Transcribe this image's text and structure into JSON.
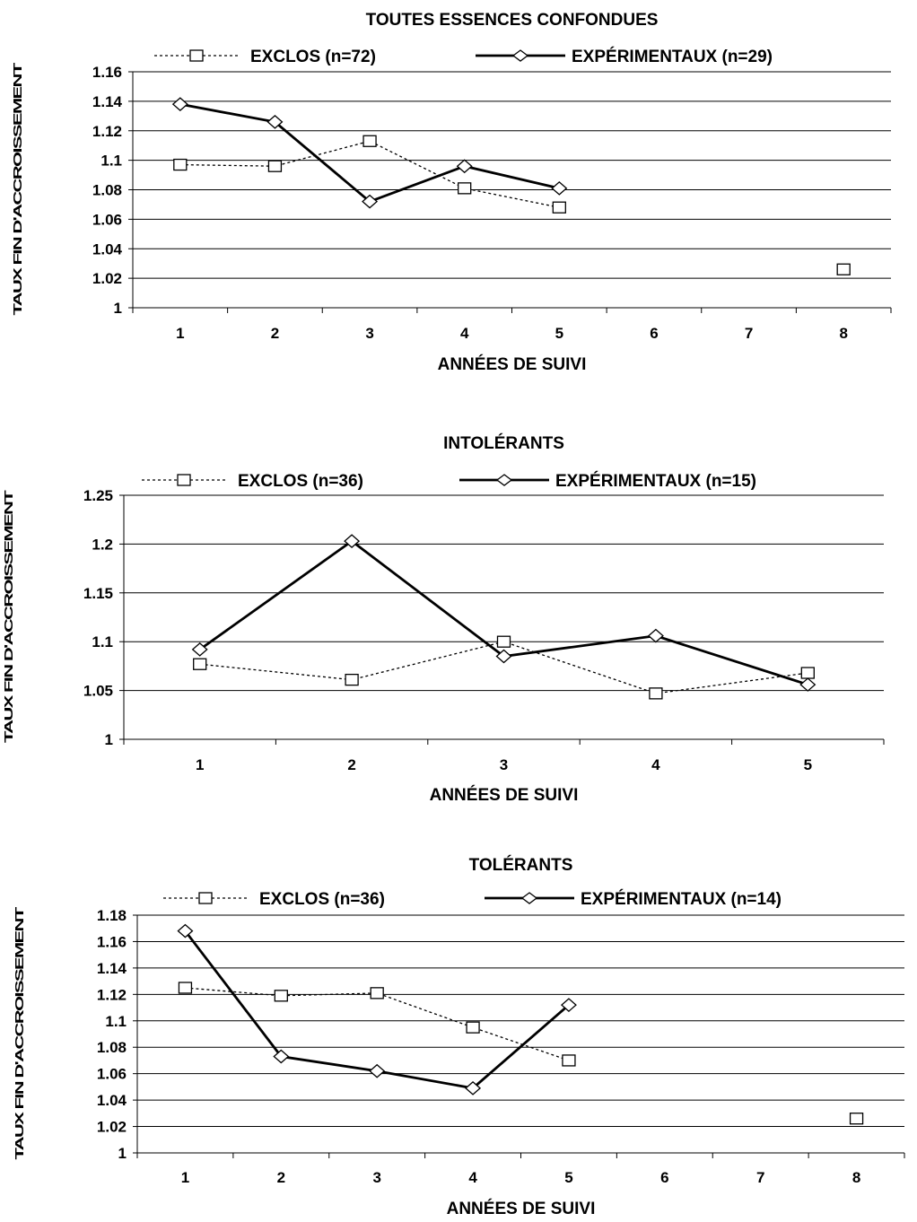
{
  "chart_data": [
    {
      "type": "line",
      "title": "TOUTES ESSENCES CONFONDUES",
      "xlabel": "ANNÉES DE SUIVI",
      "ylabel": "TAUX FIN D'ACCROISSEMENT",
      "categories": [
        "1",
        "2",
        "3",
        "4",
        "5",
        "6",
        "7",
        "8"
      ],
      "ylim": [
        1,
        1.16
      ],
      "yticks": [
        "1",
        "1.02",
        "1.04",
        "1.06",
        "1.08",
        "1.1",
        "1.12",
        "1.14",
        "1.16"
      ],
      "grid": true,
      "legend_position": "top",
      "series": [
        {
          "name": "EXCLOS (n=72)",
          "style": "dotted",
          "marker": "square",
          "values": [
            1.097,
            1.096,
            1.113,
            1.081,
            1.068,
            null,
            null,
            1.026
          ]
        },
        {
          "name": "EXPÉRIMENTAUX (n=29)",
          "style": "solid",
          "marker": "diamond",
          "values": [
            1.138,
            1.126,
            1.072,
            1.096,
            1.081,
            null,
            null,
            null
          ]
        }
      ]
    },
    {
      "type": "line",
      "title": "INTOLÉRANTS",
      "xlabel": "ANNÉES DE SUIVI",
      "ylabel": "TAUX FIN D'ACCROISSEMENT",
      "categories": [
        "1",
        "2",
        "3",
        "4",
        "5"
      ],
      "ylim": [
        1,
        1.25
      ],
      "yticks": [
        "1",
        "1.05",
        "1.1",
        "1.15",
        "1.2",
        "1.25"
      ],
      "grid": true,
      "legend_position": "top",
      "series": [
        {
          "name": "EXCLOS (n=36)",
          "style": "dotted",
          "marker": "square",
          "values": [
            1.077,
            1.061,
            1.1,
            1.047,
            1.068
          ]
        },
        {
          "name": "EXPÉRIMENTAUX (n=15)",
          "style": "solid",
          "marker": "diamond",
          "values": [
            1.092,
            1.203,
            1.085,
            1.106,
            1.056
          ]
        }
      ]
    },
    {
      "type": "line",
      "title": "TOLÉRANTS",
      "xlabel": "ANNÉES DE SUIVI",
      "ylabel": "TAUX FIN D'ACCROISSEMENT",
      "categories": [
        "1",
        "2",
        "3",
        "4",
        "5",
        "6",
        "7",
        "8"
      ],
      "ylim": [
        1,
        1.18
      ],
      "yticks": [
        "1",
        "1.02",
        "1.04",
        "1.06",
        "1.08",
        "1.1",
        "1.12",
        "1.14",
        "1.16",
        "1.18"
      ],
      "grid": true,
      "legend_position": "top",
      "series": [
        {
          "name": "EXCLOS (n=36)",
          "style": "dotted",
          "marker": "square",
          "values": [
            1.125,
            1.119,
            1.121,
            1.095,
            1.07,
            null,
            null,
            1.026
          ]
        },
        {
          "name": "EXPÉRIMENTAUX (n=14)",
          "style": "solid",
          "marker": "diamond",
          "values": [
            1.168,
            1.073,
            1.062,
            1.049,
            1.112,
            null,
            null,
            null
          ]
        }
      ]
    }
  ]
}
